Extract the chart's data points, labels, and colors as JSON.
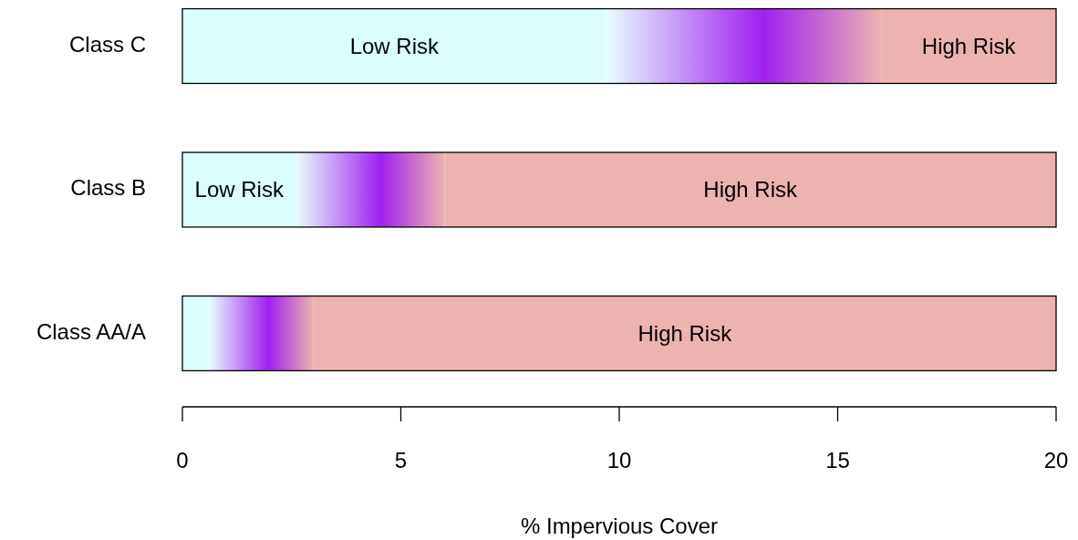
{
  "chart_data": {
    "type": "bar",
    "orientation": "horizontal",
    "stacked": true,
    "xlabel": "% Impervious Cover",
    "categories": [
      "Class C",
      "Class B",
      "Class AA/A"
    ],
    "series": [
      {
        "name": "Low Risk",
        "color": "#dcfdfe",
        "values": [
          9.7,
          2.6,
          0.6
        ]
      },
      {
        "color": "#a020f0",
        "values": [
          6.3,
          3.4,
          2.4
        ]
      },
      {
        "name": "High Risk",
        "color": "#ecb3b1",
        "values": [
          4,
          14,
          17
        ]
      }
    ],
    "xlim": [
      0,
      20
    ],
    "xticks": [
      0,
      5,
      10,
      15,
      20
    ]
  }
}
